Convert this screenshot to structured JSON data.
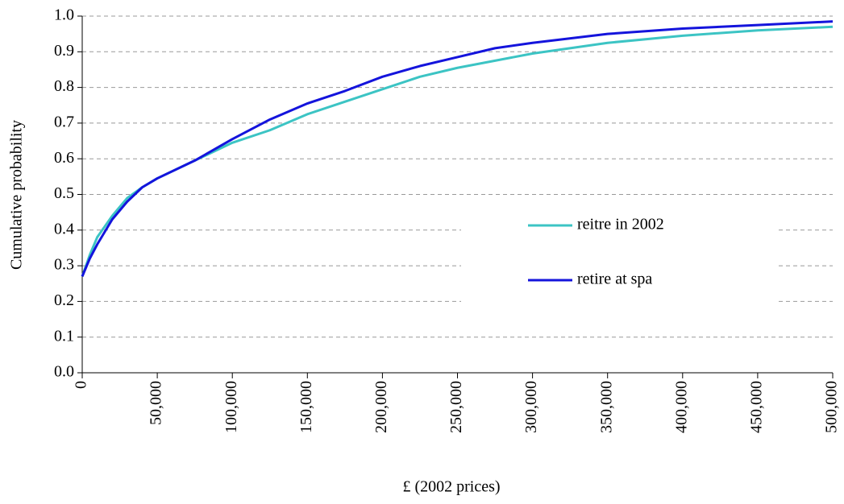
{
  "chart_data": {
    "type": "line",
    "x_label": "£ (2002 prices)",
    "y_label": "Cumulative probability",
    "x": [
      0,
      5000,
      10000,
      20000,
      30000,
      40000,
      50000,
      75000,
      100000,
      125000,
      150000,
      175000,
      200000,
      225000,
      250000,
      275000,
      300000,
      350000,
      400000,
      450000,
      500000
    ],
    "series": [
      {
        "name": "reitre in 2002",
        "color": "#3cc4c4",
        "values": [
          0.27,
          0.33,
          0.38,
          0.44,
          0.49,
          0.52,
          0.545,
          0.595,
          0.645,
          0.68,
          0.725,
          0.76,
          0.795,
          0.83,
          0.855,
          0.875,
          0.895,
          0.925,
          0.945,
          0.96,
          0.97
        ]
      },
      {
        "name": "retire at spa",
        "color": "#1414dc",
        "values": [
          0.27,
          0.32,
          0.36,
          0.43,
          0.48,
          0.52,
          0.545,
          0.595,
          0.655,
          0.71,
          0.755,
          0.79,
          0.83,
          0.86,
          0.885,
          0.91,
          0.925,
          0.95,
          0.965,
          0.975,
          0.985
        ]
      }
    ],
    "xlim": [
      0,
      500000
    ],
    "xticks": [
      0,
      {
        "value": 50000,
        "label": "50,000"
      },
      {
        "value": 100000,
        "label": "100,000"
      },
      {
        "value": 150000,
        "label": "150,000"
      },
      {
        "value": 200000,
        "label": "200,000"
      },
      {
        "value": 250000,
        "label": "250,000"
      },
      {
        "value": 300000,
        "label": "300,000"
      },
      {
        "value": 350000,
        "label": "350,000"
      },
      {
        "value": 400000,
        "label": "400,000"
      },
      {
        "value": 450000,
        "label": "450,000"
      },
      {
        "value": 500000,
        "label": "500,000"
      }
    ],
    "ylim": [
      0,
      1
    ],
    "yticks": [
      {
        "value": 0,
        "label": "0.0"
      },
      0.1,
      0.2,
      0.3,
      0.4,
      0.5,
      0.6,
      0.7,
      0.8,
      0.9,
      {
        "value": 1,
        "label": "1.0"
      }
    ],
    "grid": true,
    "legend": "center-right"
  }
}
